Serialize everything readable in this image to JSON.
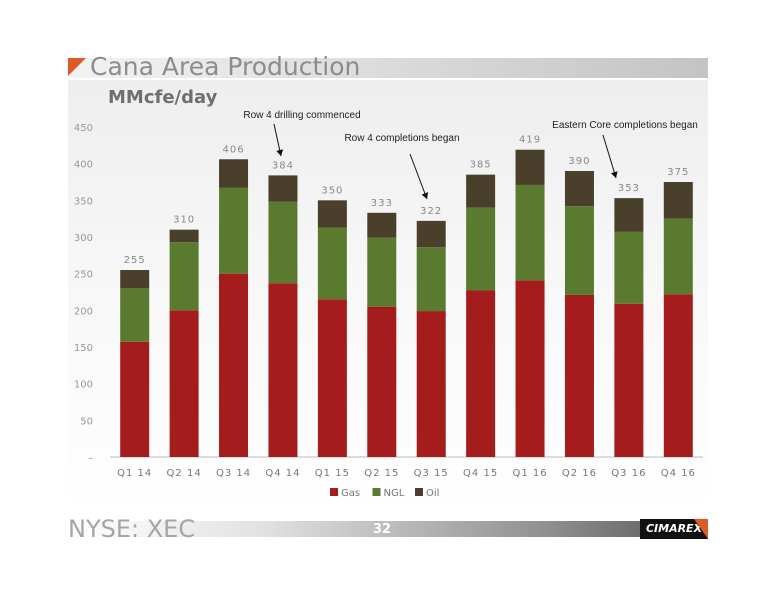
{
  "slide": {
    "title": "Cana Area Production",
    "subtitle": "MMcfe/day",
    "footer_left": "NYSE: XEC",
    "page_number": "32",
    "logo_text": "CIMAREX",
    "accent_color": "#e05a28"
  },
  "chart_data": {
    "type": "bar",
    "stacked": true,
    "categories": [
      "Q1 14",
      "Q2 14",
      "Q3 14",
      "Q4 14",
      "Q1 15",
      "Q2 15",
      "Q3 15",
      "Q4 15",
      "Q1 16",
      "Q2 16",
      "Q3 16",
      "Q4 16"
    ],
    "series": [
      {
        "name": "Gas",
        "color": "#a51c1c",
        "values": [
          157,
          200,
          250,
          237,
          215,
          205,
          199,
          227,
          241,
          221,
          209,
          222
        ]
      },
      {
        "name": "NGL",
        "color": "#5a7a2f",
        "values": [
          73,
          93,
          117,
          111,
          98,
          94,
          87,
          113,
          130,
          121,
          98,
          103
        ]
      },
      {
        "name": "Oil",
        "color": "#4a3f2a",
        "values": [
          25,
          17,
          39,
          36,
          37,
          34,
          36,
          45,
          48,
          48,
          46,
          50
        ]
      }
    ],
    "totals": [
      255,
      310,
      406,
      384,
      350,
      333,
      322,
      385,
      419,
      390,
      353,
      375
    ],
    "total_labels": [
      "255",
      "310",
      "406",
      "384",
      "350",
      "333",
      "322",
      "385",
      "419",
      "390",
      "353",
      "375"
    ],
    "ylim": [
      0,
      450
    ],
    "yticks": [
      0,
      50,
      100,
      150,
      200,
      250,
      300,
      350,
      400,
      450
    ],
    "ytick_labels": [
      "–",
      "50",
      "100",
      "150",
      "200",
      "250",
      "300",
      "350",
      "400",
      "450"
    ],
    "xlabel": "",
    "ylabel": "",
    "grid": false,
    "legend_position": "bottom-center",
    "annotations": [
      {
        "text": "Row 4 drilling commenced",
        "category": "Q4 14"
      },
      {
        "text": "Row 4 completions began",
        "category": "Q3 15"
      },
      {
        "text": "Eastern Core completions began",
        "category": "Q3 16"
      }
    ]
  }
}
